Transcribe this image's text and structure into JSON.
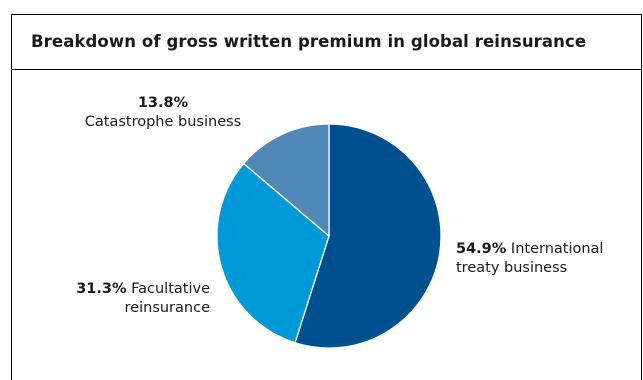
{
  "title": "Breakdown of gross written premium in global reinsurance",
  "chart_data": {
    "type": "pie",
    "start_angle_deg": 0,
    "direction": "clockwise",
    "slices": [
      {
        "key": "international",
        "value": 54.9,
        "value_label": "54.9%",
        "label_line1": "International",
        "label_line2": "treaty business",
        "color": "#00508f"
      },
      {
        "key": "facultative",
        "value": 31.3,
        "value_label": "31.3%",
        "label_line1": "Facultative",
        "label_line2": "reinsurance",
        "color": "#0099d8"
      },
      {
        "key": "catastrophe",
        "value": 13.8,
        "value_label": "13.8%",
        "label_line1": "Catastrophe business",
        "label_line2": "",
        "color": "#4f87b7"
      }
    ]
  }
}
